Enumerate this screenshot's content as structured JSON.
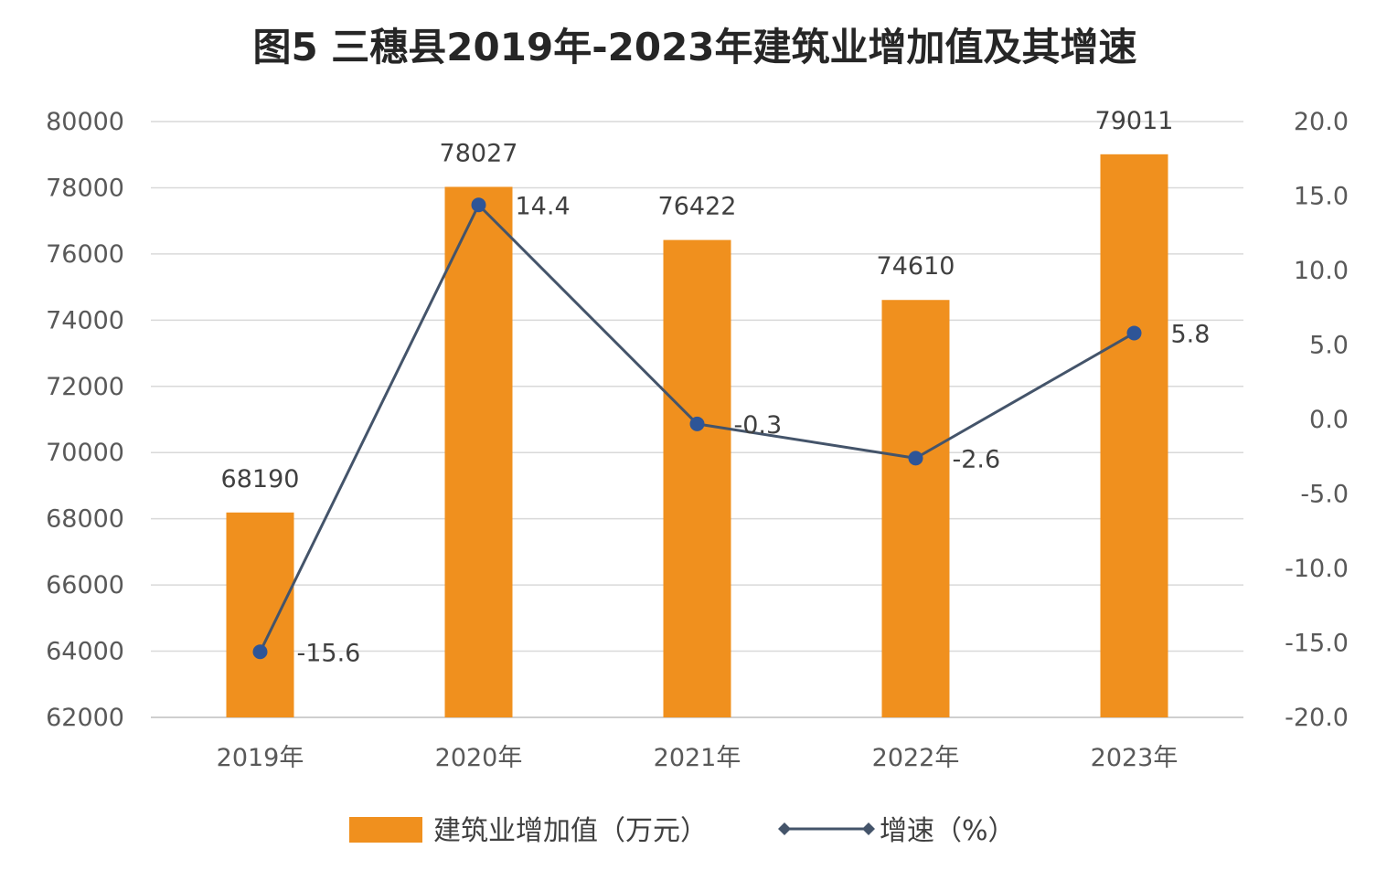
{
  "chart_data": {
    "type": "bar",
    "title": "图5 三穗县2019年-2023年建筑业增加值及其增速",
    "categories": [
      "2019年",
      "2020年",
      "2021年",
      "2022年",
      "2023年"
    ],
    "series": [
      {
        "name": "建筑业增加值（万元）",
        "type": "bar",
        "axis": "left",
        "color": "#F0901E",
        "values": [
          68190,
          78027,
          76422,
          74610,
          79011
        ],
        "labels": [
          "68190",
          "78027",
          "76422",
          "74610",
          "79011"
        ]
      },
      {
        "name": "增速（%）",
        "type": "line",
        "axis": "right",
        "color": "#44546A",
        "marker_color": "#2E5597",
        "values": [
          -15.6,
          14.4,
          -0.3,
          -2.6,
          5.8
        ],
        "labels": [
          "-15.6",
          "14.4",
          "-0.3",
          "-2.6",
          "5.8"
        ]
      }
    ],
    "y_left": {
      "ylim": [
        62000,
        80000
      ],
      "ticks": [
        "80000",
        "78000",
        "76000",
        "74000",
        "72000",
        "70000",
        "68000",
        "66000",
        "64000",
        "62000"
      ]
    },
    "y_right": {
      "ylim": [
        -20,
        20
      ],
      "ticks": [
        "20.0",
        "15.0",
        "10.0",
        "5.0",
        "0.0",
        "-5.0",
        "-10.0",
        "-15.0",
        "-20.0"
      ]
    },
    "grid": true,
    "legend_position": "bottom"
  }
}
